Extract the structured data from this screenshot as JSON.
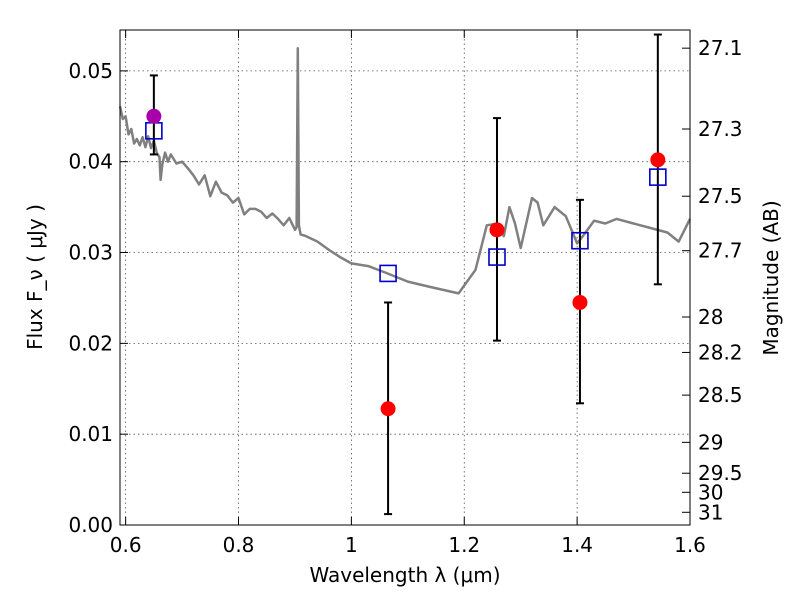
{
  "chart_data": {
    "type": "scatter",
    "xlabel": "Wavelength  λ (μm)",
    "ylabel": "Flux  F_ν  ( μJy )",
    "ylabel_right": "Magnitude (AB)",
    "xlim": [
      0.59,
      1.6
    ],
    "ylim": [
      0.0,
      0.0545
    ],
    "grid": true,
    "x_ticks": [
      0.6,
      0.8,
      1.0,
      1.2,
      1.4,
      1.6
    ],
    "x_tick_labels": [
      "0.6",
      "0.8",
      "1",
      "1.2",
      "1.4",
      "1.6"
    ],
    "y_ticks": [
      0.0,
      0.01,
      0.02,
      0.03,
      0.04,
      0.05
    ],
    "y_tick_labels": [
      "0.00",
      "0.01",
      "0.02",
      "0.03",
      "0.04",
      "0.05"
    ],
    "right_ticks": [
      {
        "flux": 0.0525,
        "label": "27.1"
      },
      {
        "flux": 0.0436,
        "label": "27.3"
      },
      {
        "flux": 0.0362,
        "label": "27.5"
      },
      {
        "flux": 0.0302,
        "label": "27.7"
      },
      {
        "flux": 0.0229,
        "label": "28"
      },
      {
        "flux": 0.019,
        "label": "28.2"
      },
      {
        "flux": 0.0143,
        "label": "28.5"
      },
      {
        "flux": 0.0091,
        "label": "29"
      },
      {
        "flux": 0.0057,
        "label": "29.5"
      },
      {
        "flux": 0.0036,
        "label": "30"
      },
      {
        "flux": 0.0014,
        "label": "31"
      }
    ],
    "model_spectrum": {
      "color": "#808080",
      "x": [
        0.59,
        0.595,
        0.6,
        0.605,
        0.61,
        0.615,
        0.62,
        0.625,
        0.63,
        0.635,
        0.64,
        0.645,
        0.65,
        0.655,
        0.66,
        0.662,
        0.665,
        0.67,
        0.675,
        0.68,
        0.69,
        0.7,
        0.71,
        0.72,
        0.73,
        0.74,
        0.75,
        0.76,
        0.77,
        0.78,
        0.79,
        0.8,
        0.81,
        0.82,
        0.83,
        0.84,
        0.85,
        0.86,
        0.87,
        0.88,
        0.89,
        0.9,
        0.903,
        0.905,
        0.907,
        0.91,
        0.92,
        0.94,
        0.96,
        0.98,
        1.0,
        1.03,
        1.06,
        1.1,
        1.14,
        1.19,
        1.22,
        1.24,
        1.26,
        1.27,
        1.28,
        1.29,
        1.3,
        1.32,
        1.33,
        1.34,
        1.36,
        1.38,
        1.39,
        1.4,
        1.41,
        1.43,
        1.45,
        1.47,
        1.5,
        1.53,
        1.56,
        1.58,
        1.6
      ],
      "y": [
        0.0461,
        0.0447,
        0.045,
        0.043,
        0.0436,
        0.042,
        0.0425,
        0.0418,
        0.0427,
        0.0416,
        0.0428,
        0.0415,
        0.0423,
        0.041,
        0.0405,
        0.038,
        0.0397,
        0.041,
        0.04,
        0.0408,
        0.0398,
        0.04,
        0.0393,
        0.0385,
        0.0375,
        0.0385,
        0.0362,
        0.0378,
        0.0366,
        0.0363,
        0.0355,
        0.036,
        0.0342,
        0.0348,
        0.0348,
        0.0345,
        0.0338,
        0.0343,
        0.0337,
        0.033,
        0.0338,
        0.0325,
        0.0328,
        0.0525,
        0.033,
        0.032,
        0.0318,
        0.0312,
        0.0303,
        0.0295,
        0.0288,
        0.0285,
        0.0278,
        0.0268,
        0.0262,
        0.0255,
        0.0281,
        0.033,
        0.0332,
        0.0318,
        0.035,
        0.0332,
        0.0305,
        0.036,
        0.0355,
        0.033,
        0.035,
        0.034,
        0.0325,
        0.031,
        0.0318,
        0.0335,
        0.0332,
        0.0337,
        0.0332,
        0.0327,
        0.0322,
        0.0312,
        0.0337
      ]
    },
    "observed": {
      "marker": "circle",
      "color": "#ff0000",
      "points": [
        {
          "x": 0.65,
          "y": 0.045,
          "yerr_low": 0.0042,
          "yerr_high": 0.0045,
          "color": "#aa00aa"
        },
        {
          "x": 1.065,
          "y": 0.0128,
          "yerr_low": 0.0116,
          "yerr_high": 0.0117
        },
        {
          "x": 1.258,
          "y": 0.0325,
          "yerr_low": 0.0122,
          "yerr_high": 0.0123
        },
        {
          "x": 1.405,
          "y": 0.0245,
          "yerr_low": 0.0111,
          "yerr_high": 0.0113
        },
        {
          "x": 1.543,
          "y": 0.0402,
          "yerr_low": 0.0137,
          "yerr_high": 0.0138
        }
      ]
    },
    "model_photometry": {
      "marker": "open-square",
      "color": "#0000cc",
      "points": [
        {
          "x": 0.65,
          "y": 0.0434
        },
        {
          "x": 1.065,
          "y": 0.0277
        },
        {
          "x": 1.258,
          "y": 0.0295
        },
        {
          "x": 1.405,
          "y": 0.0313
        },
        {
          "x": 1.543,
          "y": 0.0383
        }
      ]
    }
  }
}
